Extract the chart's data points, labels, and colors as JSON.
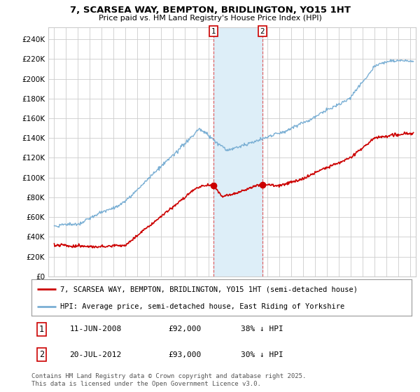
{
  "title": "7, SCARSEA WAY, BEMPTON, BRIDLINGTON, YO15 1HT",
  "subtitle": "Price paid vs. HM Land Registry's House Price Index (HPI)",
  "legend_label_red": "7, SCARSEA WAY, BEMPTON, BRIDLINGTON, YO15 1HT (semi-detached house)",
  "legend_label_blue": "HPI: Average price, semi-detached house, East Riding of Yorkshire",
  "annotation1_date": "11-JUN-2008",
  "annotation1_price": "£92,000",
  "annotation1_hpi": "38% ↓ HPI",
  "annotation2_date": "20-JUL-2012",
  "annotation2_price": "£93,000",
  "annotation2_hpi": "30% ↓ HPI",
  "footer": "Contains HM Land Registry data © Crown copyright and database right 2025.\nThis data is licensed under the Open Government Licence v3.0.",
  "sale1_x": 2008.44,
  "sale1_y": 92000,
  "sale2_x": 2012.55,
  "sale2_y": 93000,
  "ylim": [
    0,
    252000
  ],
  "xlim": [
    1994.5,
    2025.5
  ],
  "yticks": [
    0,
    20000,
    40000,
    60000,
    80000,
    100000,
    120000,
    140000,
    160000,
    180000,
    200000,
    220000,
    240000
  ],
  "background_color": "#ffffff",
  "plot_bg_color": "#ffffff",
  "grid_color": "#cccccc",
  "shade_color": "#ddeef8",
  "red_color": "#cc0000",
  "blue_color": "#7aafd4"
}
